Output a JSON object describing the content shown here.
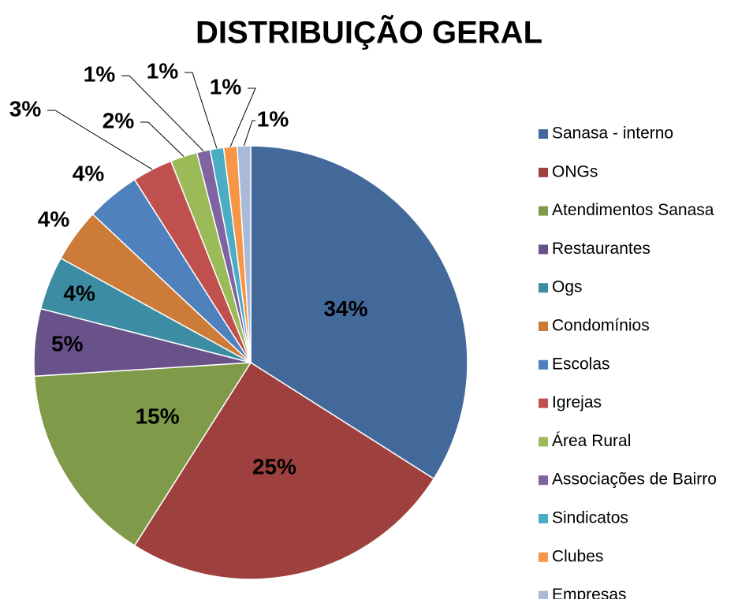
{
  "chart_data": {
    "type": "pie",
    "title": "DISTRIBUIÇÃO GERAL",
    "categories": [
      "Sanasa - interno",
      "ONGs",
      "Atendimentos Sanasa",
      "Restaurantes",
      "Ogs",
      "Condomínios",
      "Escolas",
      "Igrejas",
      "Área Rural",
      "Associações de Bairro",
      "Sindicatos",
      "Clubes",
      "Empresas"
    ],
    "values": [
      34,
      25,
      15,
      5,
      4,
      4,
      4,
      3,
      2,
      1,
      1,
      1,
      1
    ],
    "value_labels": [
      "34%",
      "25%",
      "15%",
      "5%",
      "4%",
      "4%",
      "4%",
      "3%",
      "2%",
      "1%",
      "1%",
      "1%",
      "1%"
    ],
    "colors": [
      "#43699B",
      "#9E413E",
      "#7F9A48",
      "#69518A",
      "#3C8DA3",
      "#CC7B38",
      "#4F81BD",
      "#C0504D",
      "#9BBB59",
      "#8064A2",
      "#4BACC6",
      "#F79646",
      "#A9BAD8"
    ],
    "legend": "right"
  }
}
